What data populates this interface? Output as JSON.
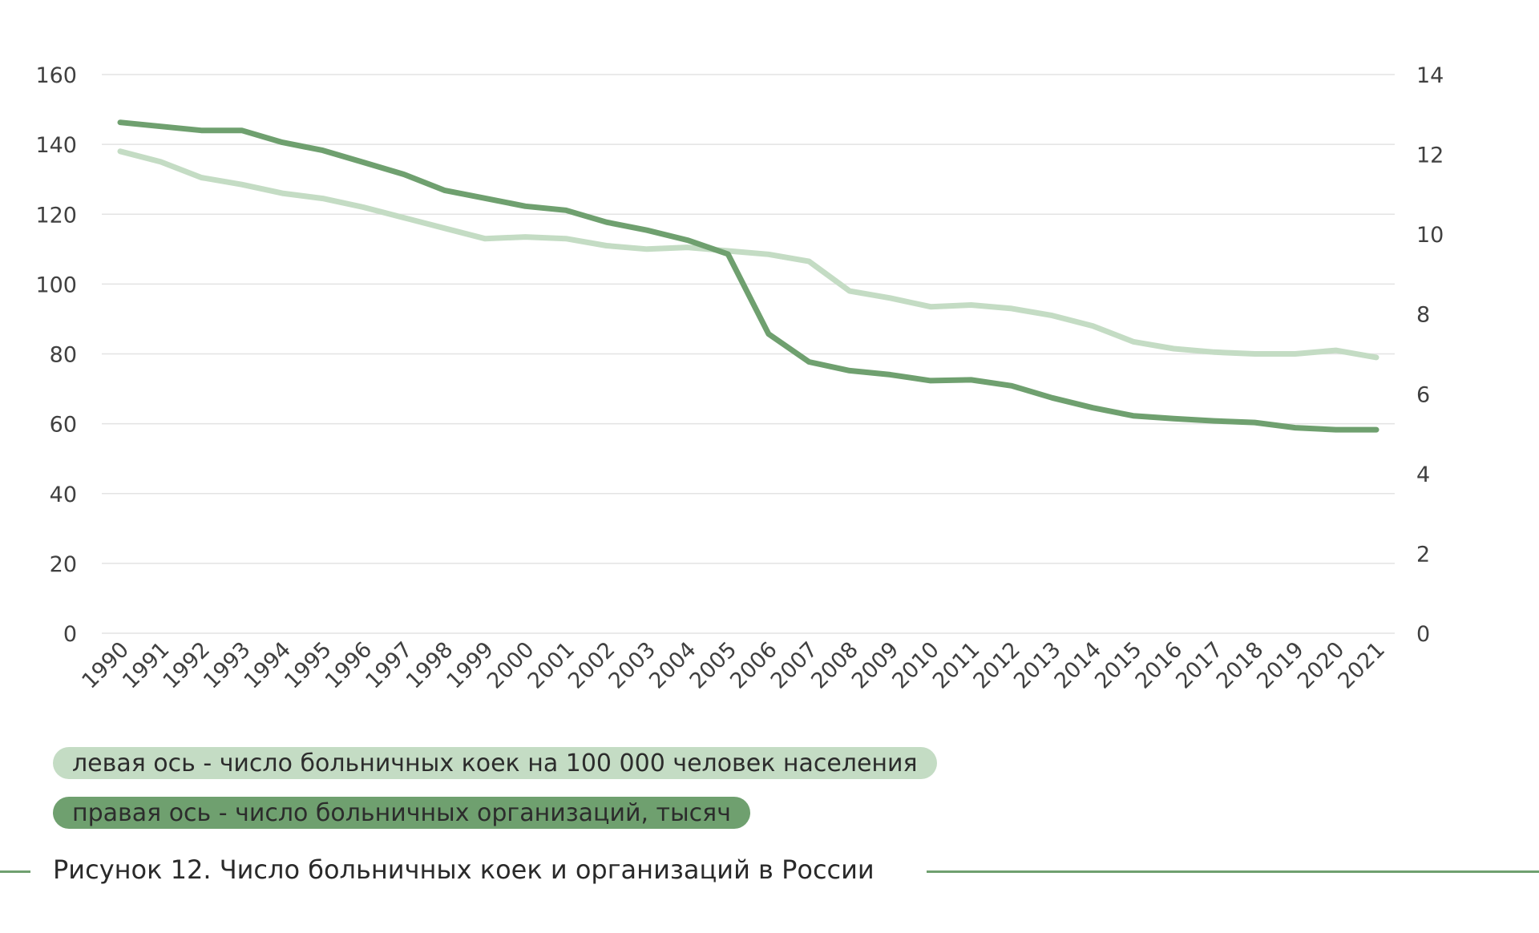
{
  "chart_data": {
    "type": "line",
    "x": [
      "1990",
      "1991",
      "1992",
      "1993",
      "1994",
      "1995",
      "1996",
      "1997",
      "1998",
      "1999",
      "2000",
      "2001",
      "2002",
      "2003",
      "2004",
      "2005",
      "2006",
      "2007",
      "2008",
      "2009",
      "2010",
      "2011",
      "2012",
      "2013",
      "2014",
      "2015",
      "2016",
      "2017",
      "2018",
      "2019",
      "2020",
      "2021"
    ],
    "left_axis": {
      "ylim": [
        0,
        160
      ],
      "ticks": [
        0,
        20,
        40,
        60,
        80,
        100,
        120,
        140,
        160
      ]
    },
    "right_axis": {
      "ylim": [
        0,
        14
      ],
      "ticks": [
        0,
        2,
        4,
        6,
        8,
        10,
        12,
        14
      ]
    },
    "grid": true,
    "series": [
      {
        "name": "левая ось - число больничных коек на 100 000 человек населения",
        "axis": "left",
        "color": "#c4dcc4",
        "values": [
          138,
          135,
          130.5,
          128.5,
          126,
          124.5,
          122,
          119,
          116,
          113,
          113.5,
          113,
          111,
          110,
          110.5,
          109.5,
          108.5,
          106.5,
          98,
          96,
          93.5,
          94,
          93,
          91,
          88,
          83.5,
          81.5,
          80.5,
          80,
          80,
          81,
          79
        ]
      },
      {
        "name": "правая ось - число больничных организаций, тысяч",
        "axis": "right",
        "color": "#6fa06f",
        "values": [
          12.8,
          12.7,
          12.6,
          12.6,
          12.3,
          12.1,
          11.8,
          11.5,
          11.1,
          10.9,
          10.7,
          10.6,
          10.3,
          10.1,
          9.85,
          9.5,
          7.5,
          6.8,
          6.58,
          6.48,
          6.33,
          6.35,
          6.2,
          5.9,
          5.65,
          5.45,
          5.38,
          5.32,
          5.28,
          5.15,
          5.1,
          5.1
        ]
      }
    ]
  },
  "legend": {
    "left_series": "левая ось - число больничных коек на 100 000 человек населения",
    "right_series": "правая ось - число больничных организаций, тысяч"
  },
  "caption": "Рисунок 12. Число больничных коек и организаций в России",
  "colors": {
    "light_series": "#c4dcc4",
    "dark_series": "#6fa06f",
    "grid": "#e3e3e3",
    "caption_rule": "#6fa06f"
  }
}
